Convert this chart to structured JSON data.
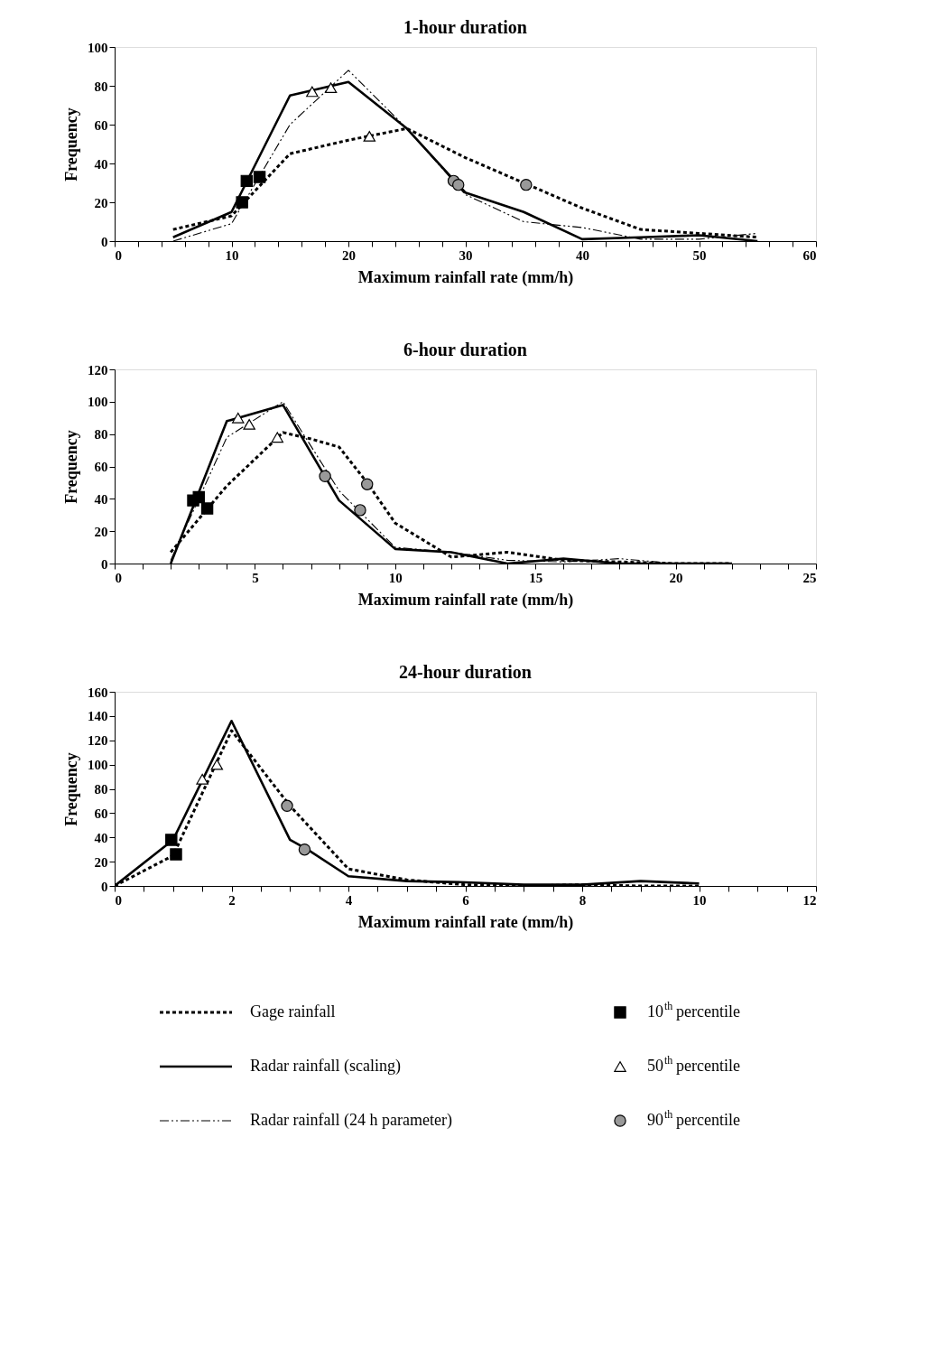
{
  "chart_data": [
    {
      "type": "line",
      "title": "1-hour duration",
      "xlabel": "Maximum rainfall rate (mm/h)",
      "ylabel": "Frequency",
      "xlim": [
        0,
        60
      ],
      "ylim": [
        0,
        100
      ],
      "grid": false,
      "legend": "bottom",
      "xticks": [
        0,
        {
          "value": 2,
          "label": null
        },
        {
          "value": 4,
          "label": null
        },
        {
          "value": 6,
          "label": null
        },
        {
          "value": 8,
          "label": null
        },
        10,
        {
          "value": 12,
          "label": null
        },
        {
          "value": 14,
          "label": null
        },
        {
          "value": 16,
          "label": null
        },
        {
          "value": 18,
          "label": null
        },
        20,
        {
          "value": 22,
          "label": null
        },
        {
          "value": 24,
          "label": null
        },
        {
          "value": 26,
          "label": null
        },
        {
          "value": 28,
          "label": null
        },
        30,
        {
          "value": 32,
          "label": null
        },
        {
          "value": 34,
          "label": null
        },
        {
          "value": 36,
          "label": null
        },
        {
          "value": 38,
          "label": null
        },
        40,
        {
          "value": 42,
          "label": null
        },
        {
          "value": 44,
          "label": null
        },
        {
          "value": 46,
          "label": null
        },
        {
          "value": 48,
          "label": null
        },
        50,
        {
          "value": 52,
          "label": null
        },
        {
          "value": 54,
          "label": null
        },
        {
          "value": 56,
          "label": null
        },
        {
          "value": 58,
          "label": null
        },
        60
      ],
      "yticks": [
        0,
        20,
        40,
        60,
        80,
        100
      ],
      "series": [
        {
          "name": "Gage rainfall",
          "line_style": "dotted",
          "marker": "none",
          "color": "#000000",
          "x": [
            5,
            10,
            15,
            20,
            25,
            30,
            35,
            40,
            45,
            50,
            55
          ],
          "values": [
            6,
            13,
            45,
            52,
            58,
            43,
            30,
            17,
            6,
            4,
            2
          ]
        },
        {
          "name": "Radar rainfall (scaling)",
          "line_style": "solid",
          "marker": "none",
          "color": "#000000",
          "x": [
            5,
            10,
            15,
            20,
            25,
            30,
            35,
            40,
            45,
            50,
            55
          ],
          "values": [
            2,
            15,
            75,
            82,
            58,
            25,
            15,
            1,
            2,
            3,
            0
          ]
        },
        {
          "name": "Radar rainfall (24 h parameter)",
          "line_style": "dashdot",
          "marker": "none",
          "color": "#000000",
          "x": [
            5,
            10,
            15,
            20,
            25,
            30,
            35,
            40,
            45,
            50,
            55
          ],
          "values": [
            0,
            9,
            60,
            88,
            58,
            24,
            10,
            7,
            1,
            1,
            4
          ]
        },
        {
          "name": "10$^{th}$ percentile",
          "type": "scatter",
          "marker": "square",
          "color": "#000000",
          "x": [
            11.3,
            10.9,
            12.4
          ],
          "values": [
            31,
            20,
            33
          ]
        },
        {
          "name": "50$^{th}$ percentile",
          "type": "scatter",
          "marker": "triangle",
          "color": "#ffffff",
          "x": [
            16.9,
            18.5,
            21.8
          ],
          "values": [
            77,
            79,
            54
          ]
        },
        {
          "name": "90$^{th}$ percentile",
          "type": "scatter",
          "marker": "circle",
          "color": "#999999",
          "x": [
            29,
            29.4,
            35.2
          ],
          "values": [
            31,
            29,
            29
          ]
        }
      ]
    },
    {
      "type": "line",
      "title": "6-hour duration",
      "xlabel": "Maximum rainfall rate (mm/h)",
      "ylabel": "Frequency",
      "xlim": [
        0,
        25
      ],
      "ylim": [
        0,
        120
      ],
      "grid": false,
      "xticks": [
        0,
        {
          "value": 1,
          "label": null
        },
        {
          "value": 2,
          "label": null
        },
        {
          "value": 3,
          "label": null
        },
        {
          "value": 4,
          "label": null
        },
        5,
        {
          "value": 6,
          "label": null
        },
        {
          "value": 7,
          "label": null
        },
        {
          "value": 8,
          "label": null
        },
        {
          "value": 9,
          "label": null
        },
        10,
        {
          "value": 11,
          "label": null
        },
        {
          "value": 12,
          "label": null
        },
        {
          "value": 13,
          "label": null
        },
        {
          "value": 14,
          "label": null
        },
        15,
        {
          "value": 16,
          "label": null
        },
        {
          "value": 17,
          "label": null
        },
        {
          "value": 18,
          "label": null
        },
        {
          "value": 19,
          "label": null
        },
        20,
        {
          "value": 21,
          "label": null
        },
        {
          "value": 22,
          "label": null
        },
        {
          "value": 23,
          "label": null
        },
        {
          "value": 24,
          "label": null
        },
        25
      ],
      "yticks": [
        0,
        20,
        40,
        60,
        80,
        100,
        120
      ],
      "series": [
        {
          "name": "Gage rainfall",
          "line_style": "dotted",
          "marker": "none",
          "color": "#000000",
          "x": [
            2,
            4,
            6,
            7,
            8,
            9,
            10,
            12,
            14,
            16,
            18,
            20,
            22
          ],
          "values": [
            7,
            48,
            81,
            77,
            72,
            50,
            25,
            4,
            7,
            2,
            1,
            0,
            0
          ]
        },
        {
          "name": "Radar rainfall (scaling)",
          "line_style": "solid",
          "marker": "none",
          "color": "#000000",
          "x": [
            2,
            4,
            6,
            8,
            10,
            12,
            14,
            16,
            18,
            20,
            22
          ],
          "values": [
            0,
            88,
            98,
            39,
            9,
            7,
            0,
            3,
            0,
            0,
            0
          ]
        },
        {
          "name": "Radar rainfall (24 h parameter)",
          "line_style": "dashdot",
          "marker": "none",
          "color": "#000000",
          "x": [
            2,
            4,
            6,
            8,
            10,
            12,
            14,
            16,
            18,
            20,
            22
          ],
          "values": [
            2,
            78,
            100,
            45,
            10,
            7,
            2,
            1,
            3,
            0,
            0
          ]
        },
        {
          "name": "10$^{th}$ percentile",
          "type": "scatter",
          "marker": "square",
          "color": "#000000",
          "x": [
            2.8,
            3.0,
            3.3
          ],
          "values": [
            39,
            41,
            34
          ]
        },
        {
          "name": "50$^{th}$ percentile",
          "type": "scatter",
          "marker": "triangle",
          "color": "#ffffff",
          "x": [
            4.4,
            4.8,
            5.8
          ],
          "values": [
            90,
            86,
            78
          ]
        },
        {
          "name": "90$^{th}$ percentile",
          "type": "scatter",
          "marker": "circle",
          "color": "#999999",
          "x": [
            7.5,
            9.0,
            8.75
          ],
          "values": [
            54,
            49,
            33
          ]
        }
      ]
    },
    {
      "type": "line",
      "title": "24-hour duration",
      "xlabel": "Maximum rainfall rate (mm/h)",
      "ylabel": "Frequency",
      "xlim": [
        0,
        12
      ],
      "ylim": [
        0,
        160
      ],
      "grid": false,
      "xticks": [
        0,
        {
          "value": 0.5,
          "label": null
        },
        {
          "value": 1,
          "label": null
        },
        {
          "value": 1.5,
          "label": null
        },
        2,
        {
          "value": 2.5,
          "label": null
        },
        {
          "value": 3,
          "label": null
        },
        {
          "value": 3.5,
          "label": null
        },
        4,
        {
          "value": 4.5,
          "label": null
        },
        {
          "value": 5,
          "label": null
        },
        {
          "value": 5.5,
          "label": null
        },
        6,
        {
          "value": 6.5,
          "label": null
        },
        {
          "value": 7,
          "label": null
        },
        {
          "value": 7.5,
          "label": null
        },
        8,
        {
          "value": 8.5,
          "label": null
        },
        {
          "value": 9,
          "label": null
        },
        {
          "value": 9.5,
          "label": null
        },
        10,
        {
          "value": 10.5,
          "label": null
        },
        {
          "value": 11,
          "label": null
        },
        {
          "value": 11.5,
          "label": null
        },
        12
      ],
      "yticks": [
        0,
        20,
        40,
        60,
        80,
        100,
        120,
        140,
        160
      ],
      "series": [
        {
          "name": "Gage rainfall",
          "line_style": "dotted",
          "marker": "none",
          "color": "#000000",
          "x": [
            0,
            1,
            2,
            3,
            4,
            5,
            6,
            7,
            8,
            9,
            10
          ],
          "values": [
            0,
            25,
            128,
            66,
            14,
            5,
            1,
            0,
            1,
            0,
            0
          ]
        },
        {
          "name": "Radar rainfall (scaling)",
          "line_style": "solid",
          "marker": "none",
          "color": "#000000",
          "x": [
            0,
            1,
            2,
            3,
            3.3,
            4,
            5,
            6,
            7,
            8,
            9,
            10
          ],
          "values": [
            0,
            38,
            136,
            38,
            30,
            8,
            4,
            3,
            1,
            1,
            4,
            2
          ]
        },
        {
          "name": "10$^{th}$ percentile",
          "type": "scatter",
          "marker": "square",
          "color": "#000000",
          "x": [
            0.97,
            1.05
          ],
          "values": [
            38,
            26
          ]
        },
        {
          "name": "50$^{th}$ percentile",
          "type": "scatter",
          "marker": "triangle",
          "color": "#ffffff",
          "x": [
            1.5,
            1.75
          ],
          "values": [
            88,
            100
          ]
        },
        {
          "name": "90$^{th}$ percentile",
          "type": "scatter",
          "marker": "circle",
          "color": "#999999",
          "x": [
            2.95,
            3.25
          ],
          "values": [
            66,
            30
          ]
        }
      ]
    }
  ]
}
